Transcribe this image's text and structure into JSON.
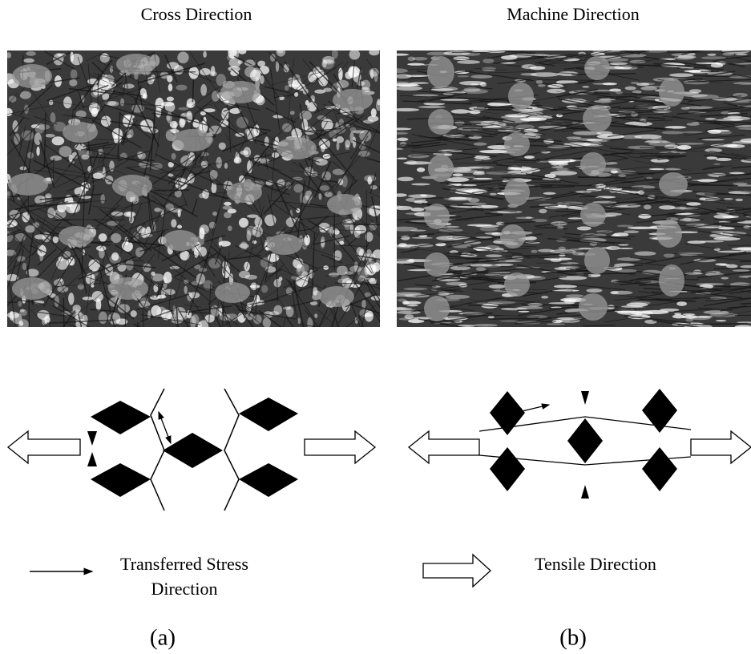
{
  "panels": [
    {
      "title": "Cross Direction",
      "label": "(a)"
    },
    {
      "title": "Machine Direction",
      "label": "(b)"
    }
  ],
  "legend": {
    "stress": [
      "Transferred Stress",
      "Direction"
    ],
    "tensile": "Tensile Direction"
  }
}
